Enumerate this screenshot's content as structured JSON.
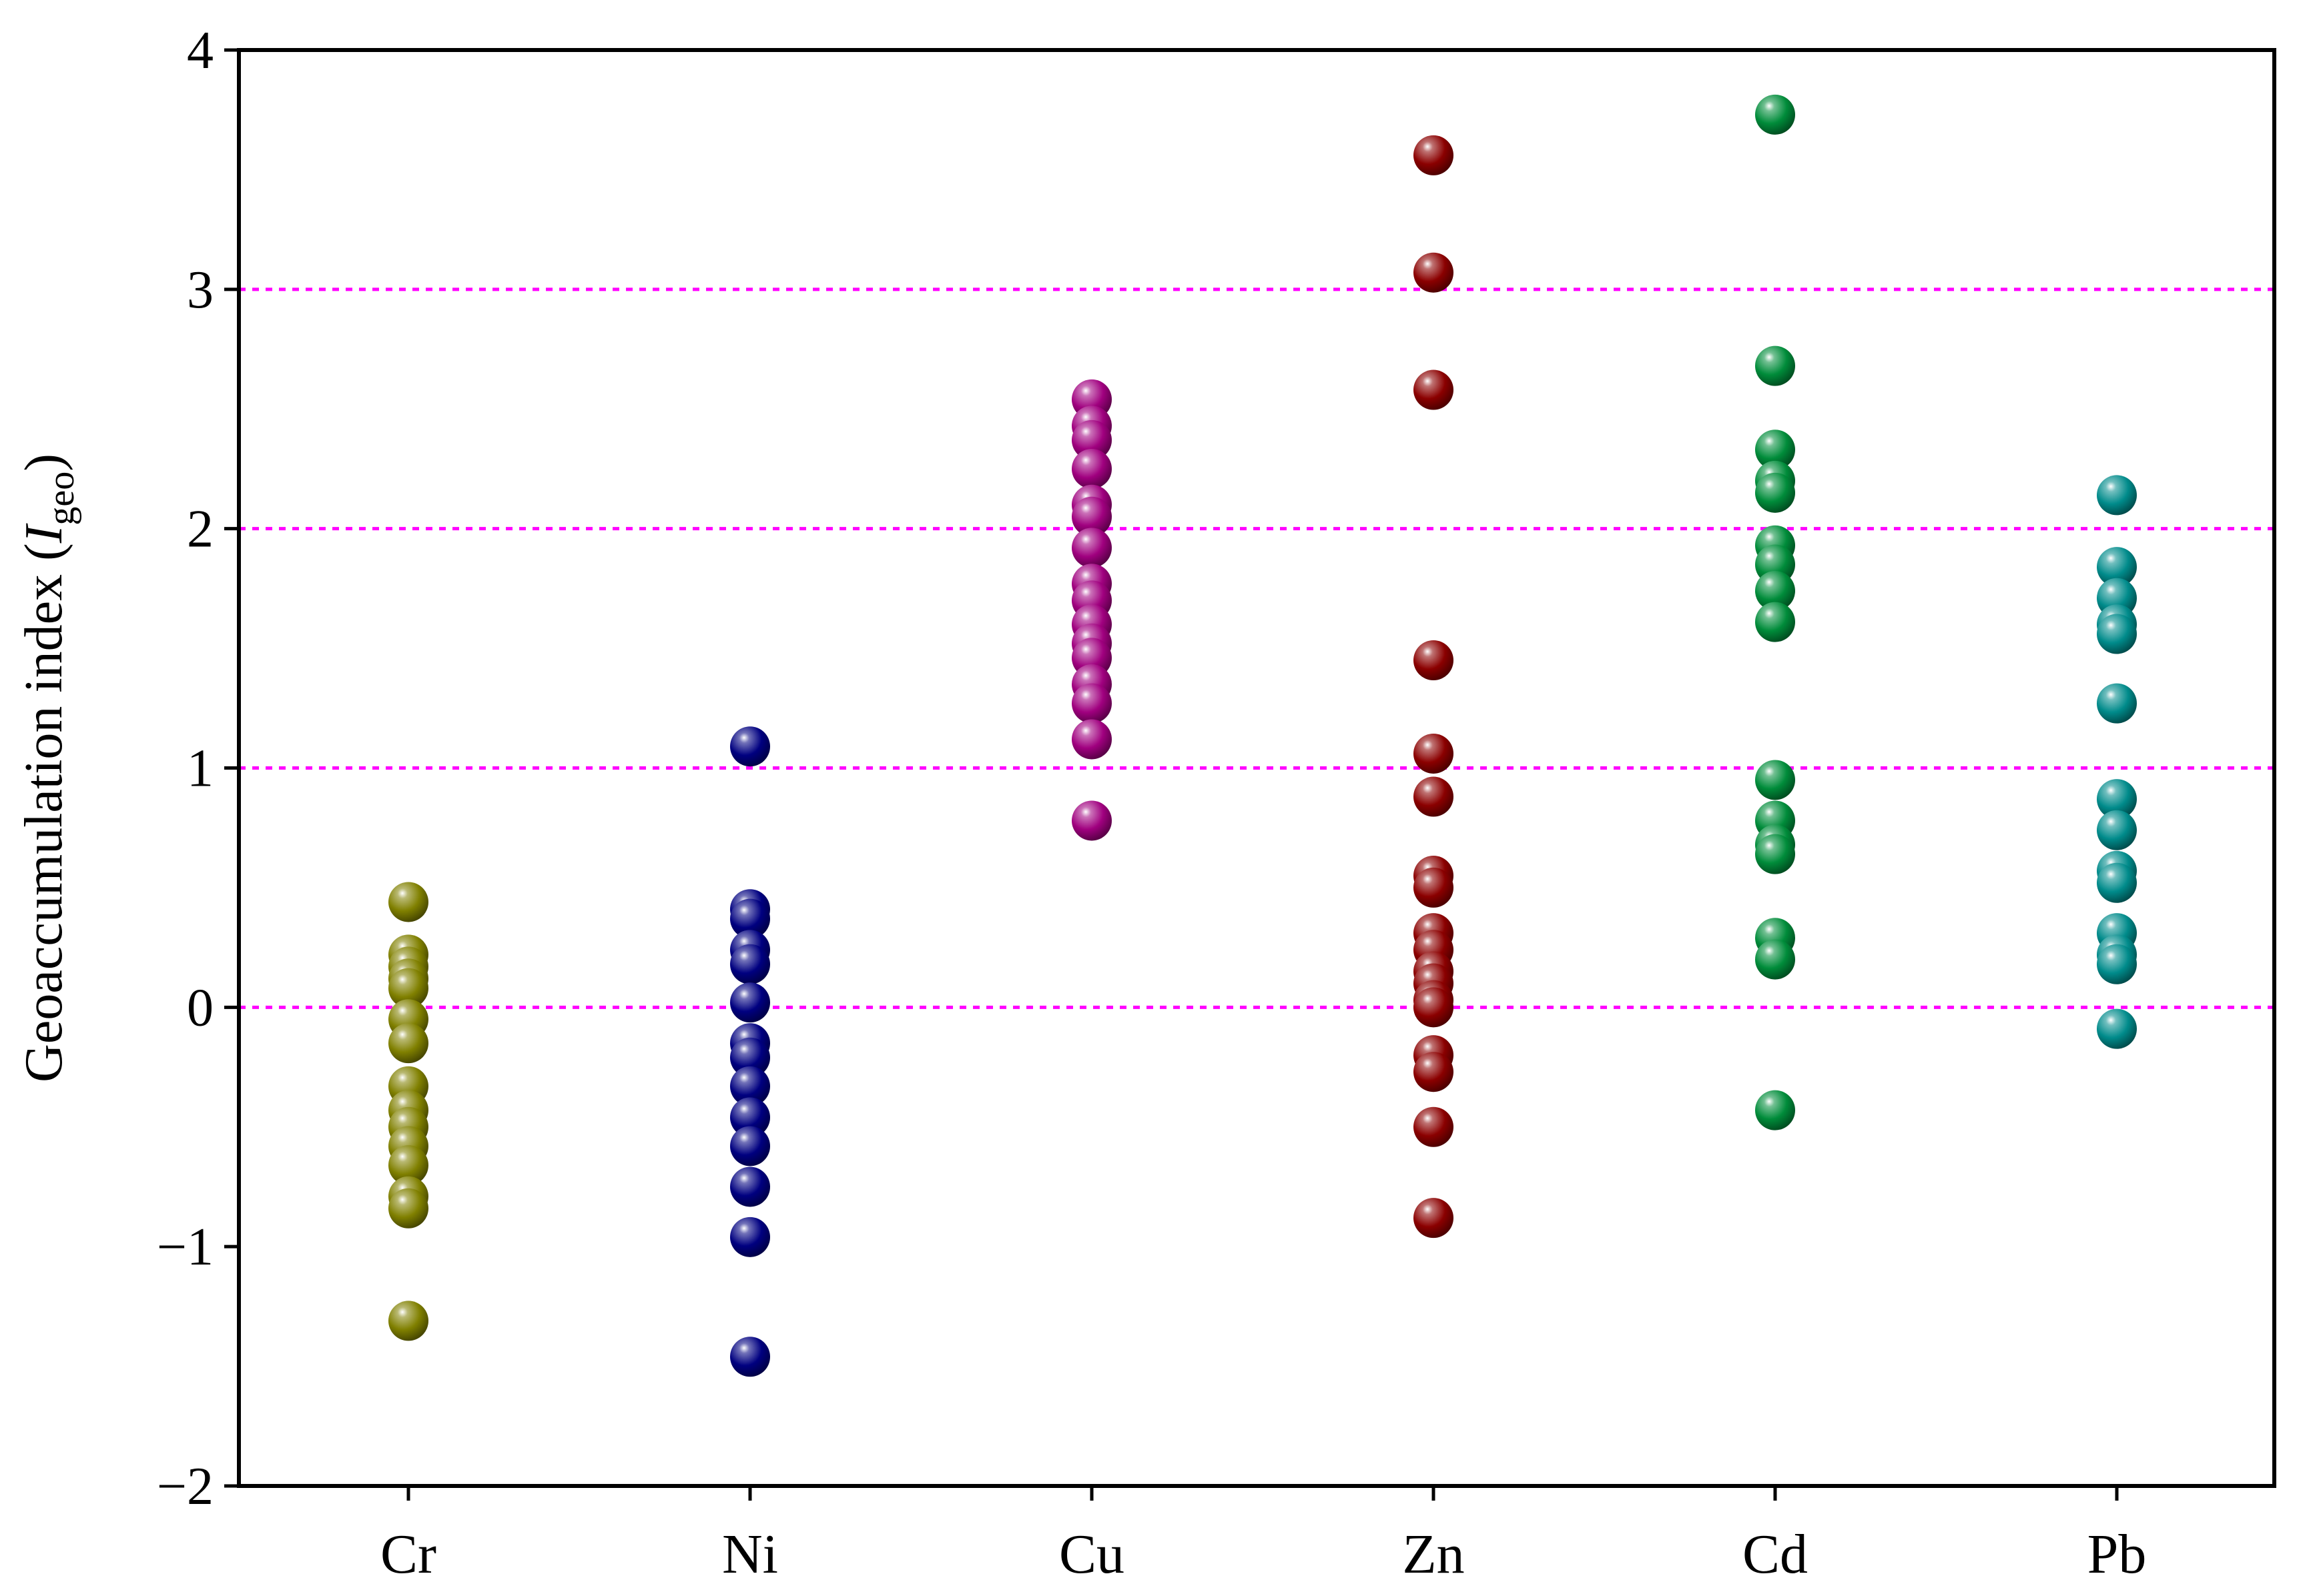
{
  "chart_data": {
    "type": "scatter",
    "ylabel": "Geoaccumulation index (",
    "ylabel_italic": "I",
    "ylabel_sub": "geo",
    "ylabel_close": ")",
    "ylim": [
      -2,
      4
    ],
    "yticks": [
      -2,
      -1,
      0,
      1,
      2,
      3,
      4
    ],
    "ytick_labels": [
      "−2",
      "−1",
      "0",
      "1",
      "2",
      "3",
      "4"
    ],
    "reference_lines": [
      0,
      1,
      2,
      3
    ],
    "reference_line_color": "#ff00ff",
    "categories": [
      "Cr",
      "Ni",
      "Cu",
      "Zn",
      "Cd",
      "Pb"
    ],
    "series": [
      {
        "category": "Cr",
        "color": "#808000",
        "values": [
          0.44,
          0.22,
          0.17,
          0.12,
          0.08,
          -0.05,
          -0.15,
          -0.33,
          -0.43,
          -0.5,
          -0.58,
          -0.66,
          -0.79,
          -0.84,
          -1.31
        ]
      },
      {
        "category": "Ni",
        "color": "#000080",
        "values": [
          1.09,
          0.41,
          0.37,
          0.24,
          0.18,
          0.02,
          -0.15,
          -0.21,
          -0.33,
          -0.46,
          -0.58,
          -0.75,
          -0.96,
          -1.46
        ]
      },
      {
        "category": "Cu",
        "color": "#a0007f",
        "values": [
          2.54,
          2.43,
          2.37,
          2.25,
          2.1,
          2.05,
          1.92,
          1.77,
          1.7,
          1.6,
          1.52,
          1.46,
          1.35,
          1.27,
          1.12,
          0.78
        ]
      },
      {
        "category": "Zn",
        "color": "#8b0000",
        "values": [
          3.56,
          3.07,
          2.58,
          1.45,
          1.06,
          0.88,
          0.55,
          0.5,
          0.31,
          0.24,
          0.15,
          0.1,
          0.03,
          0.0,
          -0.2,
          -0.27,
          -0.5,
          -0.88
        ]
      },
      {
        "category": "Cd",
        "color": "#008c3a",
        "values": [
          3.73,
          2.68,
          2.33,
          2.2,
          2.15,
          1.93,
          1.85,
          1.74,
          1.61,
          0.95,
          0.78,
          0.68,
          0.64,
          0.29,
          0.2,
          -0.43
        ]
      },
      {
        "category": "Pb",
        "color": "#008b8b",
        "values": [
          2.14,
          1.84,
          1.71,
          1.6,
          1.56,
          1.27,
          0.87,
          0.74,
          0.57,
          0.52,
          0.31,
          0.22,
          0.18,
          -0.09
        ]
      }
    ]
  }
}
